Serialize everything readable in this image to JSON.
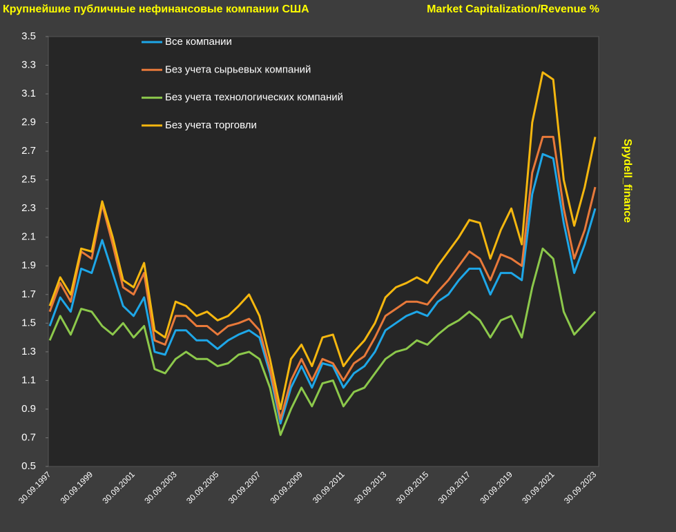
{
  "chart_data": {
    "type": "line",
    "title": "Крупнейшие публичные нефинансовые компании США",
    "subtitle": "Market Capitalization/Revenue %",
    "annotation": "Spydell_finance",
    "categories": [
      "30.09.1997",
      null,
      null,
      null,
      "30.09.1999",
      null,
      null,
      null,
      "30.09.2001",
      null,
      null,
      null,
      "30.09.2003",
      null,
      null,
      null,
      "30.09.2005",
      null,
      null,
      null,
      "30.09.2007",
      null,
      null,
      null,
      "30.09.2009",
      null,
      null,
      null,
      "30.09.2011",
      null,
      null,
      null,
      "30.09.2013",
      null,
      null,
      null,
      "30.09.2015",
      null,
      null,
      null,
      "30.09.2017",
      null,
      null,
      null,
      "30.09.2019",
      null,
      null,
      null,
      "30.09.2021",
      null,
      null,
      null,
      "30.09.2023"
    ],
    "series": [
      {
        "name": "Все компании",
        "color": "#1ea7e8",
        "values": [
          1.48,
          1.68,
          1.58,
          1.88,
          1.85,
          2.08,
          1.85,
          1.62,
          1.55,
          1.68,
          1.3,
          1.28,
          1.45,
          1.45,
          1.38,
          1.38,
          1.32,
          1.38,
          1.42,
          1.45,
          1.4,
          1.15,
          0.8,
          1.05,
          1.2,
          1.05,
          1.22,
          1.2,
          1.05,
          1.15,
          1.2,
          1.3,
          1.45,
          1.5,
          1.55,
          1.58,
          1.55,
          1.65,
          1.7,
          1.8,
          1.88,
          1.88,
          1.7,
          1.85,
          1.85,
          1.8,
          2.4,
          2.68,
          2.65,
          2.2,
          1.85,
          2.05,
          2.3
        ]
      },
      {
        "name": "Без учета сырьевых компаний",
        "color": "#e8793a",
        "values": [
          1.58,
          1.78,
          1.65,
          2.0,
          1.95,
          2.33,
          2.05,
          1.75,
          1.7,
          1.85,
          1.38,
          1.35,
          1.55,
          1.55,
          1.48,
          1.48,
          1.42,
          1.48,
          1.5,
          1.53,
          1.45,
          1.18,
          0.83,
          1.1,
          1.25,
          1.1,
          1.25,
          1.22,
          1.1,
          1.22,
          1.27,
          1.4,
          1.55,
          1.6,
          1.65,
          1.65,
          1.63,
          1.72,
          1.8,
          1.9,
          2.0,
          1.95,
          1.8,
          1.98,
          1.95,
          1.9,
          2.55,
          2.8,
          2.8,
          2.3,
          1.95,
          2.15,
          2.45
        ]
      },
      {
        "name": "Без учета технологических компаний",
        "color": "#8cc84b",
        "values": [
          1.38,
          1.55,
          1.42,
          1.6,
          1.58,
          1.48,
          1.42,
          1.5,
          1.4,
          1.48,
          1.18,
          1.15,
          1.25,
          1.3,
          1.25,
          1.25,
          1.2,
          1.22,
          1.28,
          1.3,
          1.25,
          1.05,
          0.72,
          0.9,
          1.05,
          0.92,
          1.08,
          1.1,
          0.92,
          1.02,
          1.05,
          1.15,
          1.25,
          1.3,
          1.32,
          1.38,
          1.35,
          1.42,
          1.48,
          1.52,
          1.58,
          1.52,
          1.4,
          1.52,
          1.55,
          1.4,
          1.75,
          2.02,
          1.95,
          1.58,
          1.42,
          1.5,
          1.58
        ]
      },
      {
        "name": "Без учета торговли",
        "color": "#f5b70f",
        "values": [
          1.62,
          1.82,
          1.7,
          2.02,
          2.0,
          2.35,
          2.1,
          1.8,
          1.75,
          1.92,
          1.45,
          1.4,
          1.65,
          1.62,
          1.55,
          1.58,
          1.52,
          1.55,
          1.62,
          1.7,
          1.55,
          1.25,
          0.9,
          1.25,
          1.35,
          1.2,
          1.4,
          1.42,
          1.2,
          1.3,
          1.38,
          1.5,
          1.68,
          1.75,
          1.78,
          1.82,
          1.78,
          1.9,
          2.0,
          2.1,
          2.22,
          2.2,
          1.95,
          2.15,
          2.3,
          2.05,
          2.9,
          3.25,
          3.2,
          2.5,
          2.18,
          2.45,
          2.8
        ]
      }
    ],
    "ylim": [
      0.5,
      3.5
    ],
    "yticks": [
      0.5,
      0.7,
      0.9,
      1.1,
      1.3,
      1.5,
      1.7,
      1.9,
      2.1,
      2.3,
      2.5,
      2.7,
      2.9,
      3.1,
      3.3,
      3.5
    ],
    "grid": false,
    "legend": "top-left"
  }
}
